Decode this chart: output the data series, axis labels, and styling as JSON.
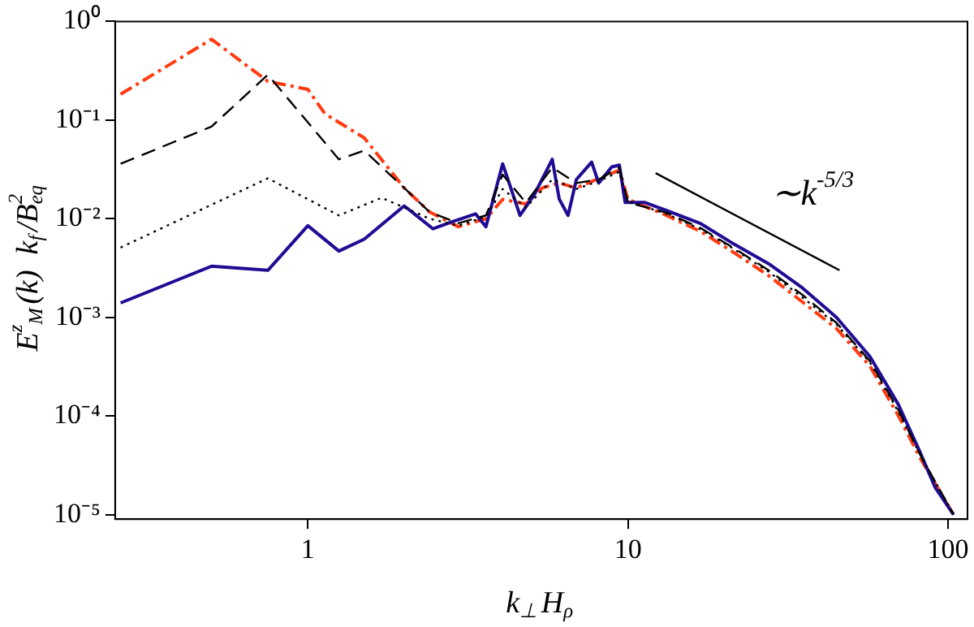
{
  "chart_data": {
    "type": "line",
    "xlabel": "k$_{⊥}$H$_{ρ}$",
    "ylabel": "E$^{z}$$_{M}$(k)  k$_{f}$/B$^{2}$$_{eq}$",
    "log": "xy",
    "xlim": [
      0.25,
      115
    ],
    "ylim": [
      9e-06,
      1
    ],
    "xticks": [
      1,
      10,
      100
    ],
    "yticks": [
      {
        "value": 1,
        "label": "10⁰"
      },
      {
        "value": 0.1,
        "label": "10⁻¹"
      },
      {
        "value": 0.01,
        "label": "10⁻²"
      },
      {
        "value": 0.001,
        "label": "10⁻³"
      },
      {
        "value": 0.0001,
        "label": "10⁻⁴"
      },
      {
        "value": 1e-05,
        "label": "10⁻⁵"
      }
    ],
    "grid": false,
    "marker": "none",
    "series": [
      {
        "color": "#000000",
        "line_style": "dashed",
        "x": [
          0.26,
          0.5,
          0.75,
          1.25,
          1.5,
          2,
          2.4,
          2.95,
          3.6,
          4.06,
          4.8,
          5.8,
          6.9,
          8.1,
          9.4,
          10,
          13.2,
          16.9,
          21.5,
          27.5,
          35,
          44.8,
          57,
          70,
          82,
          104
        ],
        "values": [
          0.036,
          0.086,
          0.288,
          0.04,
          0.049,
          0.0205,
          0.0117,
          0.009,
          0.0108,
          0.028,
          0.0145,
          0.033,
          0.023,
          0.025,
          0.033,
          0.0146,
          0.0115,
          0.008,
          0.005,
          0.003,
          0.0017,
          0.00088,
          0.00036,
          0.000115,
          4e-05,
          1e-05
        ]
      },
      {
        "color": "#000000",
        "line_style": "dotted",
        "x": [
          0.26,
          0.75,
          1.25,
          1.7,
          2,
          2.4,
          2.95,
          3.6,
          4.06,
          4.8,
          5.8,
          6.9,
          8.1,
          9.4,
          10,
          13.2,
          16.9,
          21.5,
          27.5,
          35,
          44.8,
          57,
          70,
          82,
          104
        ],
        "values": [
          0.0051,
          0.0257,
          0.0108,
          0.0163,
          0.013,
          0.01,
          0.0085,
          0.0105,
          0.02,
          0.013,
          0.025,
          0.02,
          0.024,
          0.03,
          0.015,
          0.0112,
          0.0078,
          0.0049,
          0.0029,
          0.0016,
          0.00085,
          0.00035,
          0.00011,
          4e-05,
          1e-05
        ]
      },
      {
        "color": "#200c94",
        "line_style": "solid",
        "x": [
          0.26,
          0.5,
          0.75,
          1,
          1.25,
          1.5,
          2,
          2.46,
          2.82,
          3.34,
          3.6,
          4.06,
          4.6,
          5.1,
          5.8,
          6.1,
          6.5,
          6.9,
          7.7,
          8.1,
          8.9,
          9.4,
          9.8,
          11.3,
          13.2,
          16.9,
          21.5,
          27.5,
          35,
          44.8,
          57,
          70,
          82,
          91,
          104
        ],
        "values": [
          0.0014,
          0.0033,
          0.003,
          0.0085,
          0.0047,
          0.0062,
          0.0135,
          0.0079,
          0.0093,
          0.0112,
          0.0083,
          0.036,
          0.0108,
          0.0176,
          0.04,
          0.0158,
          0.0108,
          0.025,
          0.0375,
          0.023,
          0.0335,
          0.035,
          0.0146,
          0.0146,
          0.0121,
          0.0089,
          0.0055,
          0.0035,
          0.002,
          0.001,
          0.0004,
          0.00013,
          4.2e-05,
          1.9e-05,
          1e-05
        ]
      },
      {
        "color": "#ff3a10",
        "line_style": "dashdot",
        "x": [
          0.26,
          0.5,
          0.75,
          1,
          1.13,
          1.5,
          2,
          2.4,
          2.95,
          3.6,
          4.06,
          4.8,
          5.4,
          6.1,
          6.9,
          8.1,
          9.4,
          10,
          13.2,
          16.9,
          21.5,
          27.5,
          35,
          44.8,
          57,
          70,
          82,
          104
        ],
        "values": [
          0.183,
          0.66,
          0.247,
          0.205,
          0.116,
          0.066,
          0.0205,
          0.0117,
          0.0083,
          0.01,
          0.0157,
          0.0141,
          0.0205,
          0.023,
          0.0205,
          0.0256,
          0.031,
          0.0157,
          0.0108,
          0.0074,
          0.0045,
          0.00265,
          0.00144,
          0.00077,
          0.00032,
          0.0001,
          3.7e-05,
          1e-05
        ]
      },
      {
        "color": "#000000",
        "line_style": "solid",
        "x": [
          12.2,
          45.8
        ],
        "values": [
          0.029,
          0.003
        ]
      }
    ],
    "annotations": [
      "∼k$^{-5/3}$"
    ]
  }
}
